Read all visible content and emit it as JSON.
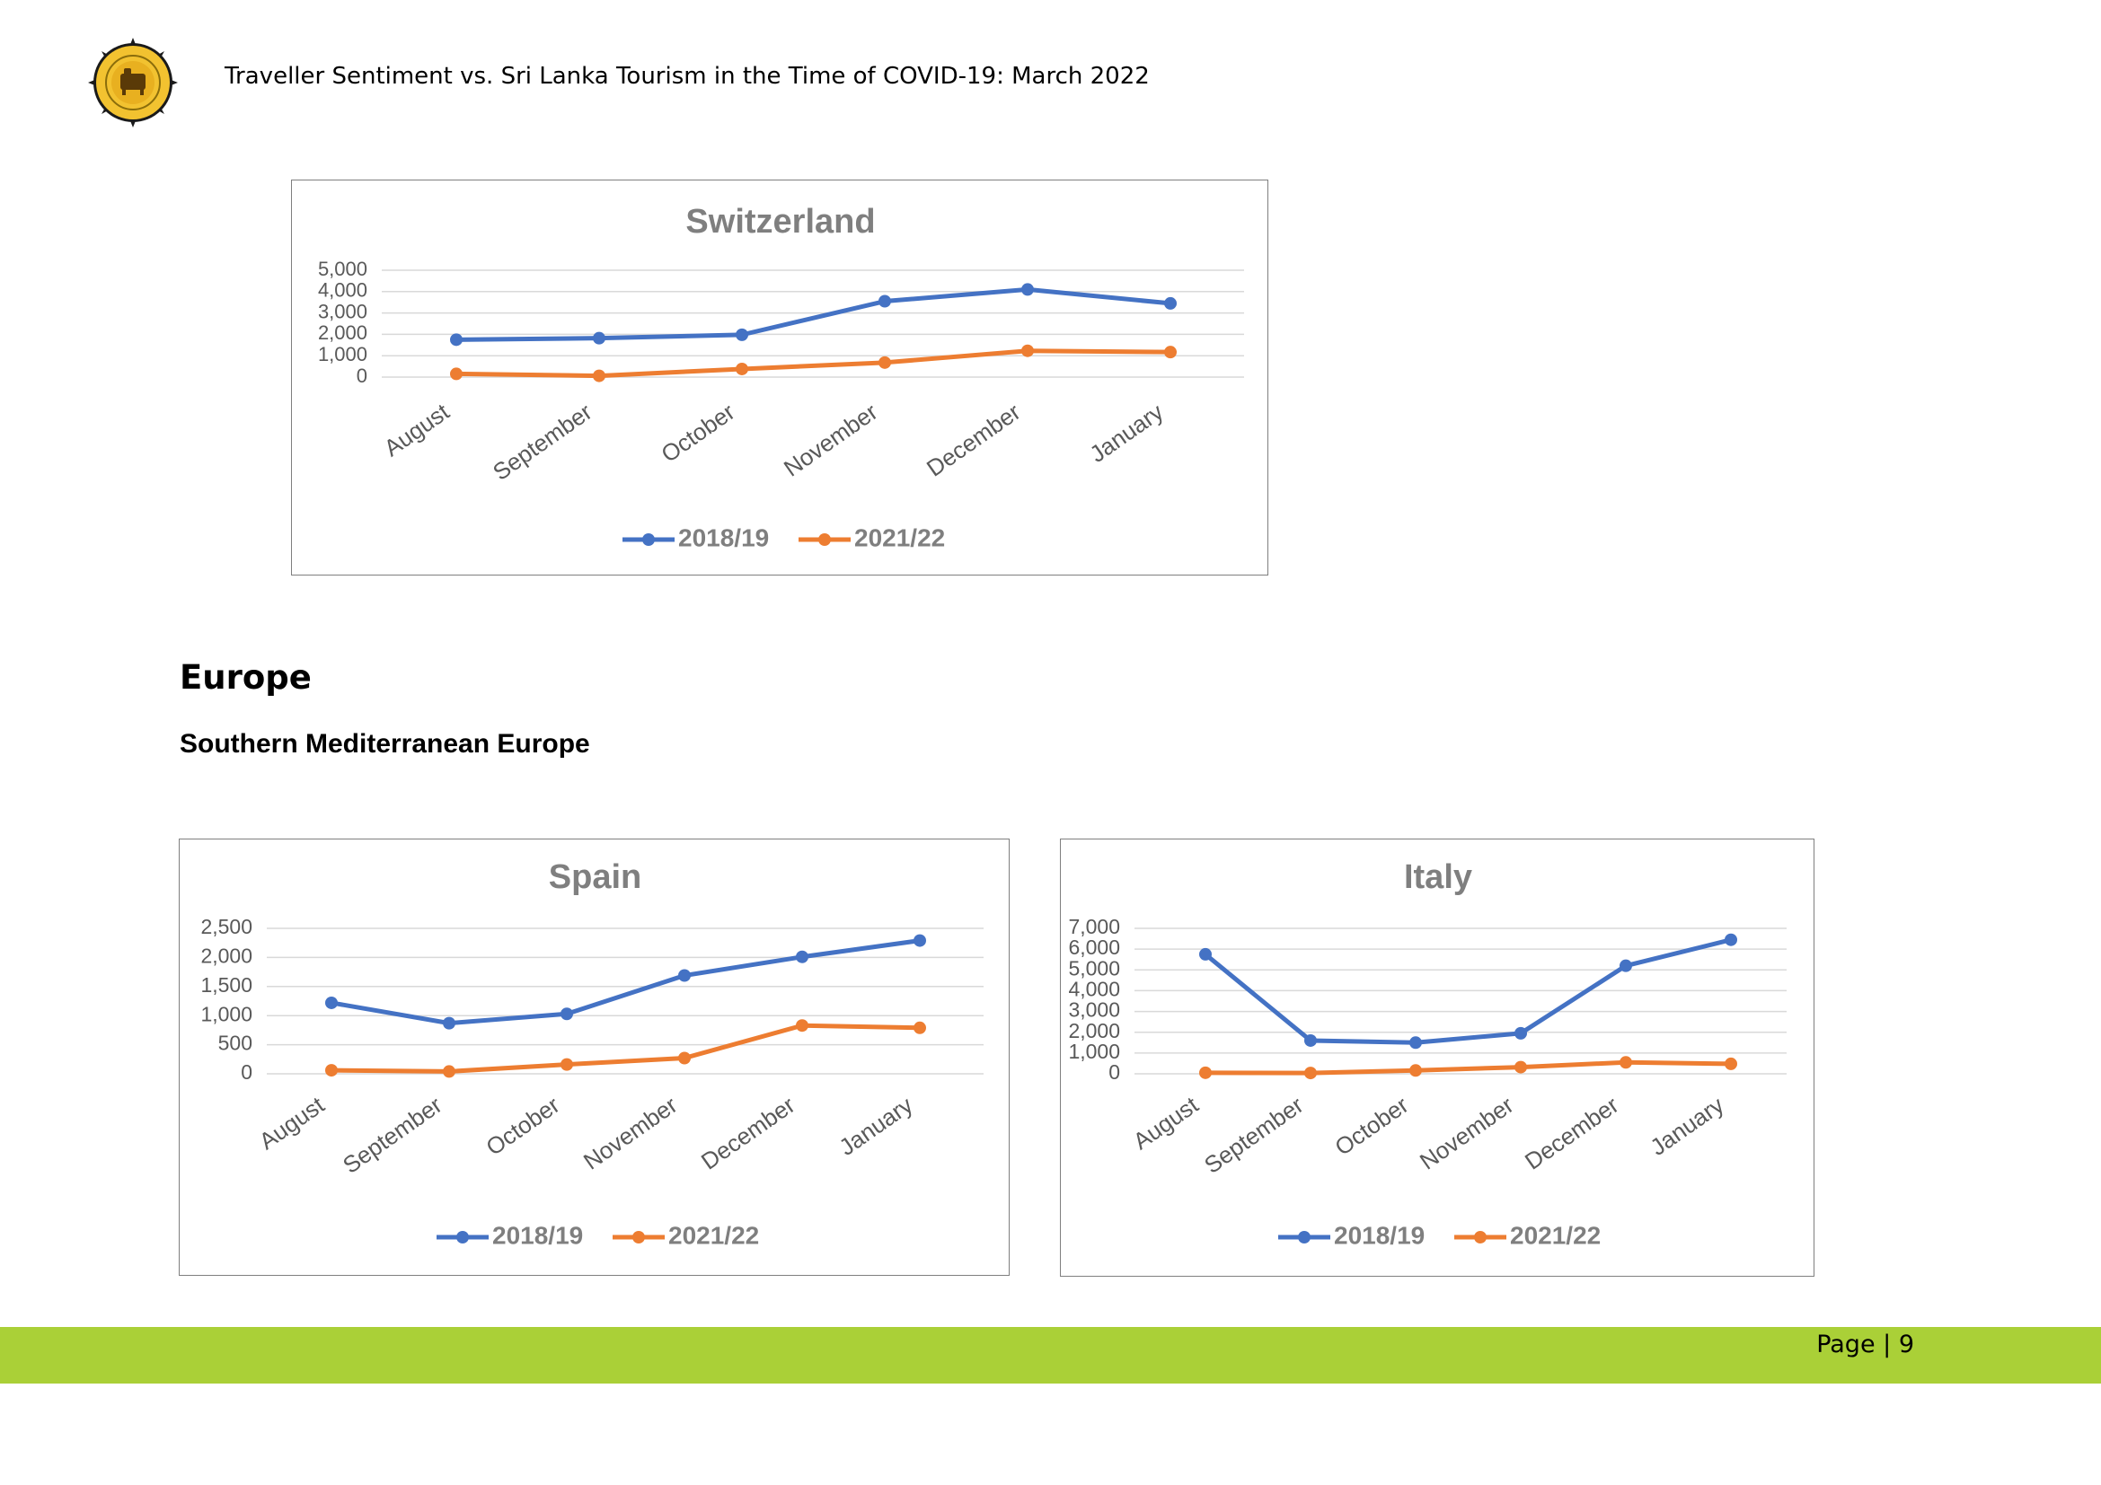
{
  "header": {
    "title": "Traveller Sentiment vs. Sri Lanka Tourism in the Time of COVID-19: March 2022"
  },
  "section": {
    "heading": "Europe",
    "subheading": "Southern Mediterranean Europe"
  },
  "footer": {
    "page_label": "Page | 9"
  },
  "colors": {
    "series_2018_19": "#4472c4",
    "series_2021_22": "#ed7d31",
    "axis_text": "#595959",
    "title_text": "#7f7f7f",
    "gridline": "#d9d9d9",
    "footer_bar": "#aad037"
  },
  "chart_data": [
    {
      "id": "switzerland",
      "type": "line",
      "title": "Switzerland",
      "categories": [
        "August",
        "September",
        "October",
        "November",
        "December",
        "January"
      ],
      "series": [
        {
          "name": "2018/19",
          "values": [
            1750,
            1820,
            1980,
            3550,
            4100,
            3450
          ]
        },
        {
          "name": "2021/22",
          "values": [
            150,
            60,
            380,
            680,
            1230,
            1170
          ]
        }
      ],
      "ylim": [
        0,
        5000
      ],
      "yticks": [
        "0",
        "1,000",
        "2,000",
        "3,000",
        "4,000",
        "5,000"
      ],
      "ytick_values": [
        0,
        1000,
        2000,
        3000,
        4000,
        5000
      ],
      "grid": true,
      "legend": "bottom"
    },
    {
      "id": "spain",
      "type": "line",
      "title": "Spain",
      "categories": [
        "August",
        "September",
        "October",
        "November",
        "December",
        "January"
      ],
      "series": [
        {
          "name": "2018/19",
          "values": [
            1220,
            870,
            1030,
            1690,
            2010,
            2290
          ]
        },
        {
          "name": "2021/22",
          "values": [
            60,
            40,
            160,
            270,
            830,
            790
          ]
        }
      ],
      "ylim": [
        0,
        2500
      ],
      "yticks": [
        "0",
        "500",
        "1,000",
        "1,500",
        "2,000",
        "2,500"
      ],
      "ytick_values": [
        0,
        500,
        1000,
        1500,
        2000,
        2500
      ],
      "grid": true,
      "legend": "bottom"
    },
    {
      "id": "italy",
      "type": "line",
      "title": "Italy",
      "categories": [
        "August",
        "September",
        "October",
        "November",
        "December",
        "January"
      ],
      "series": [
        {
          "name": "2018/19",
          "values": [
            5750,
            1600,
            1500,
            1950,
            5200,
            6450
          ]
        },
        {
          "name": "2021/22",
          "values": [
            50,
            40,
            160,
            320,
            550,
            480
          ]
        }
      ],
      "ylim": [
        0,
        7000
      ],
      "yticks": [
        "0",
        "1,000",
        "2,000",
        "3,000",
        "4,000",
        "5,000",
        "6,000",
        "7,000"
      ],
      "ytick_values": [
        0,
        1000,
        2000,
        3000,
        4000,
        5000,
        6000,
        7000
      ],
      "grid": true,
      "legend": "bottom"
    }
  ]
}
